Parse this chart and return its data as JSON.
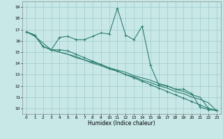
{
  "xlabel": "Humidex (Indice chaleur)",
  "bg_color": "#c8e8e8",
  "grid_color": "#a0c8c8",
  "line_color": "#2e7d6e",
  "x": [
    0,
    1,
    2,
    3,
    4,
    5,
    6,
    7,
    8,
    9,
    10,
    11,
    12,
    13,
    14,
    15,
    16,
    17,
    18,
    19,
    20,
    21,
    22,
    23
  ],
  "line1": [
    16.8,
    16.5,
    15.5,
    15.2,
    16.3,
    16.4,
    16.1,
    16.1,
    16.4,
    16.7,
    16.6,
    18.9,
    16.5,
    16.1,
    17.3,
    13.8,
    12.1,
    12.0,
    11.7,
    11.7,
    11.3,
    10.1,
    9.9,
    9.8
  ],
  "line2": [
    16.8,
    16.5,
    15.5,
    15.2,
    15.2,
    15.1,
    14.8,
    14.5,
    14.2,
    13.9,
    13.6,
    13.3,
    13.0,
    12.7,
    12.4,
    12.1,
    11.8,
    11.5,
    11.2,
    10.9,
    10.6,
    10.3,
    10.0,
    9.8
  ],
  "line3": [
    16.8,
    16.4,
    15.8,
    15.2,
    15.0,
    14.8,
    14.5,
    14.3,
    14.0,
    13.8,
    13.5,
    13.3,
    13.0,
    12.8,
    12.5,
    12.3,
    12.0,
    11.8,
    11.5,
    11.3,
    11.0,
    10.8,
    10.5,
    9.8
  ],
  "line4": [
    16.8,
    16.5,
    15.5,
    15.2,
    15.0,
    14.8,
    14.6,
    14.3,
    14.1,
    13.9,
    13.6,
    13.4,
    13.2,
    12.9,
    12.7,
    12.5,
    12.2,
    12.0,
    11.7,
    11.5,
    11.2,
    11.0,
    10.0,
    9.8
  ],
  "ylim": [
    9.5,
    19.5
  ],
  "yticks": [
    10,
    11,
    12,
    13,
    14,
    15,
    16,
    17,
    18,
    19
  ],
  "xticks": [
    0,
    1,
    2,
    3,
    4,
    5,
    6,
    7,
    8,
    9,
    10,
    11,
    12,
    13,
    14,
    15,
    16,
    17,
    18,
    19,
    20,
    21,
    22,
    23
  ],
  "marker": "+",
  "figsize": [
    3.2,
    2.0
  ],
  "dpi": 100,
  "tick_fontsize": 4.2,
  "xlabel_fontsize": 5.5,
  "linewidth": 0.8,
  "markersize": 3.5
}
